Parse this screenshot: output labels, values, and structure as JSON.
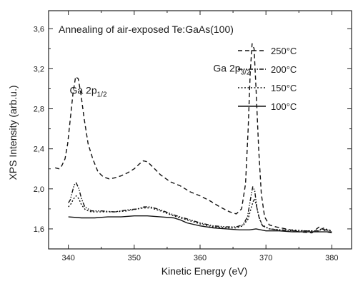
{
  "chart_data": {
    "type": "line",
    "title": "Annealing of air-exposed Te:GaAs(100)",
    "xlabel": "Kinetic Energy (eV)",
    "ylabel": "XPS Intensity (arb.u.)",
    "xlim": [
      337,
      383
    ],
    "ylim": [
      1.4,
      3.78
    ],
    "x_ticks": [
      340,
      350,
      360,
      370,
      380
    ],
    "y_ticks": [
      1.6,
      2.0,
      2.4,
      2.8,
      3.2,
      3.6
    ],
    "y_tick_labels": [
      "1,6",
      "2,0",
      "2,4",
      "2,8",
      "3,2",
      "3,6"
    ],
    "grid": false,
    "legend_position": "top-right",
    "annotations": [
      {
        "text": "Ga 2p",
        "sub": "1/2",
        "x": 340.2,
        "y": 2.95
      },
      {
        "text": "Ga 2p",
        "sub": "3/2",
        "x": 362.0,
        "y": 3.17
      }
    ],
    "series": [
      {
        "name": "250°C",
        "dash": "dash",
        "points": [
          [
            338,
            2.21
          ],
          [
            338.6,
            2.2
          ],
          [
            339,
            2.23
          ],
          [
            339.5,
            2.3
          ],
          [
            339.9,
            2.45
          ],
          [
            340.3,
            2.7
          ],
          [
            340.7,
            2.95
          ],
          [
            341.1,
            3.12
          ],
          [
            341.5,
            3.1
          ],
          [
            341.9,
            2.95
          ],
          [
            342.4,
            2.7
          ],
          [
            343,
            2.45
          ],
          [
            343.7,
            2.3
          ],
          [
            344.5,
            2.17
          ],
          [
            345.3,
            2.12
          ],
          [
            346.2,
            2.1
          ],
          [
            347,
            2.11
          ],
          [
            348,
            2.13
          ],
          [
            349,
            2.16
          ],
          [
            350,
            2.2
          ],
          [
            350.8,
            2.25
          ],
          [
            351.4,
            2.28
          ],
          [
            352,
            2.27
          ],
          [
            352.8,
            2.22
          ],
          [
            354,
            2.14
          ],
          [
            355.5,
            2.07
          ],
          [
            357,
            2.03
          ],
          [
            358.5,
            1.97
          ],
          [
            360,
            1.93
          ],
          [
            361.5,
            1.88
          ],
          [
            363,
            1.82
          ],
          [
            364.5,
            1.77
          ],
          [
            365.5,
            1.75
          ],
          [
            366.3,
            1.8
          ],
          [
            366.9,
            2.05
          ],
          [
            367.3,
            2.6
          ],
          [
            367.6,
            3.15
          ],
          [
            367.9,
            3.45
          ],
          [
            368.2,
            3.4
          ],
          [
            368.5,
            3.0
          ],
          [
            368.9,
            2.4
          ],
          [
            369.3,
            1.95
          ],
          [
            369.8,
            1.72
          ],
          [
            370.5,
            1.64
          ],
          [
            371.5,
            1.62
          ],
          [
            373,
            1.6
          ],
          [
            375,
            1.57
          ],
          [
            377,
            1.56
          ],
          [
            377.7,
            1.6
          ],
          [
            378.1,
            1.62
          ],
          [
            378.6,
            1.6
          ],
          [
            379.2,
            1.57
          ],
          [
            380,
            1.56
          ]
        ]
      },
      {
        "name": "200°C",
        "dash": "dashdotdot",
        "points": [
          [
            340,
            1.86
          ],
          [
            340.3,
            1.89
          ],
          [
            340.6,
            1.97
          ],
          [
            340.9,
            2.04
          ],
          [
            341.2,
            2.06
          ],
          [
            341.6,
            2.0
          ],
          [
            342,
            1.9
          ],
          [
            342.5,
            1.82
          ],
          [
            343.5,
            1.78
          ],
          [
            345,
            1.78
          ],
          [
            347,
            1.77
          ],
          [
            349,
            1.79
          ],
          [
            350.5,
            1.8
          ],
          [
            351.5,
            1.82
          ],
          [
            352.5,
            1.82
          ],
          [
            354,
            1.79
          ],
          [
            356,
            1.74
          ],
          [
            358,
            1.7
          ],
          [
            360,
            1.66
          ],
          [
            362,
            1.63
          ],
          [
            364,
            1.62
          ],
          [
            365.5,
            1.62
          ],
          [
            366.5,
            1.64
          ],
          [
            367.2,
            1.72
          ],
          [
            367.6,
            1.88
          ],
          [
            368,
            2.02
          ],
          [
            368.3,
            1.98
          ],
          [
            368.6,
            1.82
          ],
          [
            369,
            1.7
          ],
          [
            369.5,
            1.63
          ],
          [
            370.5,
            1.6
          ],
          [
            372,
            1.59
          ],
          [
            374,
            1.58
          ],
          [
            376,
            1.58
          ],
          [
            378,
            1.58
          ],
          [
            378.6,
            1.6
          ],
          [
            379,
            1.59
          ],
          [
            380,
            1.58
          ]
        ]
      },
      {
        "name": "150°C",
        "dash": "dot",
        "points": [
          [
            340,
            1.82
          ],
          [
            340.4,
            1.85
          ],
          [
            340.8,
            1.9
          ],
          [
            341.2,
            1.93
          ],
          [
            341.6,
            1.9
          ],
          [
            342,
            1.84
          ],
          [
            342.6,
            1.79
          ],
          [
            343.5,
            1.77
          ],
          [
            345,
            1.77
          ],
          [
            347,
            1.77
          ],
          [
            349,
            1.78
          ],
          [
            350.5,
            1.8
          ],
          [
            351.5,
            1.81
          ],
          [
            352.5,
            1.81
          ],
          [
            354,
            1.78
          ],
          [
            356,
            1.73
          ],
          [
            358,
            1.69
          ],
          [
            360,
            1.65
          ],
          [
            362,
            1.62
          ],
          [
            364,
            1.61
          ],
          [
            365.5,
            1.61
          ],
          [
            366.5,
            1.63
          ],
          [
            367.3,
            1.7
          ],
          [
            367.8,
            1.82
          ],
          [
            368.2,
            1.9
          ],
          [
            368.5,
            1.85
          ],
          [
            368.9,
            1.73
          ],
          [
            369.4,
            1.64
          ],
          [
            370.5,
            1.6
          ],
          [
            372,
            1.59
          ],
          [
            374,
            1.59
          ],
          [
            376,
            1.58
          ],
          [
            378,
            1.58
          ],
          [
            378.6,
            1.61
          ],
          [
            379,
            1.6
          ],
          [
            380,
            1.58
          ]
        ]
      },
      {
        "name": "100°C",
        "dash": "solid",
        "points": [
          [
            340,
            1.72
          ],
          [
            342,
            1.71
          ],
          [
            344,
            1.71
          ],
          [
            346,
            1.72
          ],
          [
            348,
            1.72
          ],
          [
            350,
            1.73
          ],
          [
            352,
            1.73
          ],
          [
            354,
            1.72
          ],
          [
            356,
            1.71
          ],
          [
            357,
            1.69
          ],
          [
            358,
            1.66
          ],
          [
            360,
            1.63
          ],
          [
            362,
            1.61
          ],
          [
            364,
            1.6
          ],
          [
            366,
            1.59
          ],
          [
            367.5,
            1.59
          ],
          [
            368.5,
            1.6
          ],
          [
            370,
            1.58
          ],
          [
            372,
            1.58
          ],
          [
            374,
            1.57
          ],
          [
            376,
            1.57
          ],
          [
            378,
            1.57
          ],
          [
            380,
            1.57
          ]
        ]
      }
    ]
  }
}
